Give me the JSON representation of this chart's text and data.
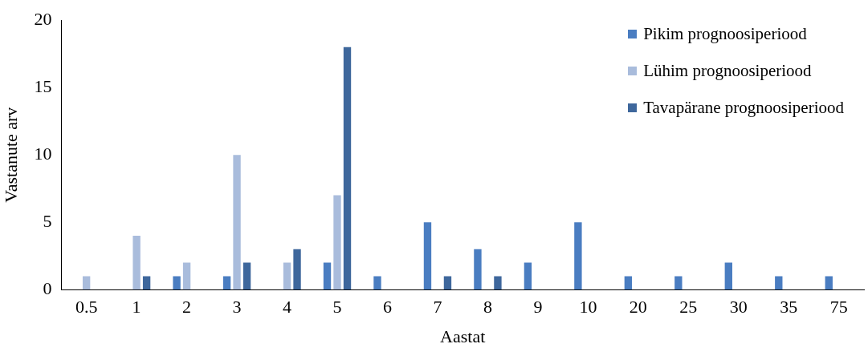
{
  "chart_data": {
    "type": "bar",
    "xlabel": "Aastat",
    "ylabel": "Vastanute arv",
    "categories": [
      "0.5",
      "1",
      "2",
      "3",
      "4",
      "5",
      "6",
      "7",
      "8",
      "9",
      "10",
      "20",
      "25",
      "30",
      "35",
      "75"
    ],
    "series": [
      {
        "name": "Pikim prognoosiperiood",
        "color": "#4a7dc1",
        "values": [
          0,
          0,
          1,
          1,
          0,
          2,
          1,
          5,
          3,
          2,
          5,
          1,
          1,
          2,
          1,
          1
        ]
      },
      {
        "name": "Lühim prognoosiperiood",
        "color": "#a9bcdc",
        "values": [
          1,
          4,
          2,
          10,
          2,
          7,
          0,
          0,
          0,
          0,
          0,
          0,
          0,
          0,
          0,
          0
        ]
      },
      {
        "name": "Tavapärane prognoosiperiood",
        "color": "#3e679c",
        "values": [
          0,
          1,
          0,
          2,
          3,
          18,
          0,
          1,
          1,
          0,
          0,
          0,
          0,
          0,
          0,
          0
        ]
      }
    ],
    "ylim": [
      0,
      20
    ],
    "yticks": [
      0,
      5,
      10,
      15,
      20
    ],
    "grid": false,
    "legend": "top right"
  }
}
